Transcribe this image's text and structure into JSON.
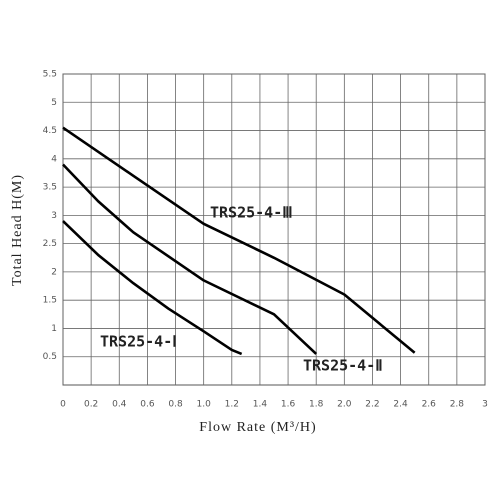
{
  "chart_data": {
    "type": "line",
    "x_label": "Flow Rate (M³/H)",
    "y_label": "Total Head H(M)",
    "xlim": [
      0,
      3
    ],
    "ylim": [
      0,
      5.5
    ],
    "xticks": [
      0,
      0.2,
      0.4,
      0.6,
      0.8,
      {
        "value": 1,
        "label": "1.0"
      },
      1.2,
      1.4,
      1.6,
      1.8,
      {
        "value": 2,
        "label": "2.0"
      },
      2.2,
      2.4,
      2.6,
      2.8,
      3
    ],
    "yticks": [
      0.5,
      1,
      1.5,
      2,
      2.5,
      3,
      3.5,
      4,
      4.5,
      5,
      5.5
    ],
    "grid": true,
    "series": [
      {
        "name": "TRS25-4-Ⅲ",
        "color": "#000000",
        "x": [
          0,
          0.5,
          1.0,
          1.5,
          2.0,
          2.5
        ],
        "values": [
          4.55,
          3.7,
          2.85,
          2.25,
          1.6,
          0.57
        ]
      },
      {
        "name": "TRS25-4-Ⅱ",
        "color": "#000000",
        "x": [
          0,
          0.25,
          0.5,
          1.0,
          1.5,
          1.8
        ],
        "values": [
          3.9,
          3.25,
          2.7,
          1.85,
          1.25,
          0.55
        ]
      },
      {
        "name": "TRS25-4-Ⅰ",
        "color": "#000000",
        "x": [
          0,
          0.25,
          0.5,
          0.75,
          1.0,
          1.2,
          1.27
        ],
        "values": [
          2.9,
          2.3,
          1.8,
          1.35,
          0.95,
          0.62,
          0.55
        ]
      }
    ]
  }
}
